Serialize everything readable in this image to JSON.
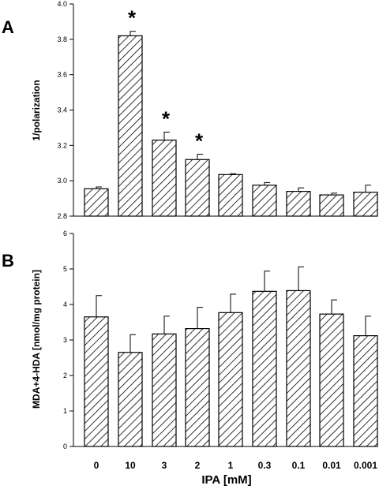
{
  "chart_data": [
    {
      "type": "bar",
      "panel_label": "A",
      "ylabel": "1/polarization",
      "ylim": [
        2.8,
        4.0
      ],
      "yticks": [
        "4.0",
        "3.8",
        "3.6",
        "3.4",
        "3.2",
        "3.0",
        "2.8"
      ],
      "ytick_values": [
        4.0,
        3.8,
        3.6,
        3.4,
        3.2,
        3.0,
        2.8
      ],
      "categories": [
        "0",
        "10",
        "3",
        "2",
        "1",
        "0.3",
        "0.1",
        "0.01",
        "0.001"
      ],
      "values": [
        2.955,
        3.82,
        3.23,
        3.12,
        3.035,
        2.975,
        2.94,
        2.92,
        2.935
      ],
      "errors": [
        0.01,
        0.025,
        0.045,
        0.03,
        0.005,
        0.015,
        0.02,
        0.01,
        0.04
      ],
      "significance": [
        "",
        "*",
        "*",
        "*",
        "",
        "",
        "",
        "",
        ""
      ],
      "pattern": "diagonal-hatch"
    },
    {
      "type": "bar",
      "panel_label": "B",
      "ylabel": "MDA+4-HDA [nmol/mg protein]",
      "ylim": [
        0,
        6
      ],
      "yticks": [
        "6",
        "5",
        "4",
        "3",
        "2",
        "1",
        "0"
      ],
      "ytick_values": [
        6,
        5,
        4,
        3,
        2,
        1,
        0
      ],
      "categories": [
        "0",
        "10",
        "3",
        "2",
        "1",
        "0.3",
        "0.1",
        "0.01",
        "0.001"
      ],
      "values": [
        3.65,
        2.65,
        3.17,
        3.32,
        3.77,
        4.37,
        4.39,
        3.73,
        3.12
      ],
      "errors": [
        0.6,
        0.5,
        0.5,
        0.6,
        0.52,
        0.57,
        0.67,
        0.4,
        0.55
      ],
      "pattern": "diagonal-hatch"
    }
  ],
  "x_axis": {
    "categories": [
      "0",
      "10",
      "3",
      "2",
      "1",
      "0.3",
      "0.1",
      "0.01",
      "0.001"
    ],
    "label": "IPA [mM]"
  }
}
